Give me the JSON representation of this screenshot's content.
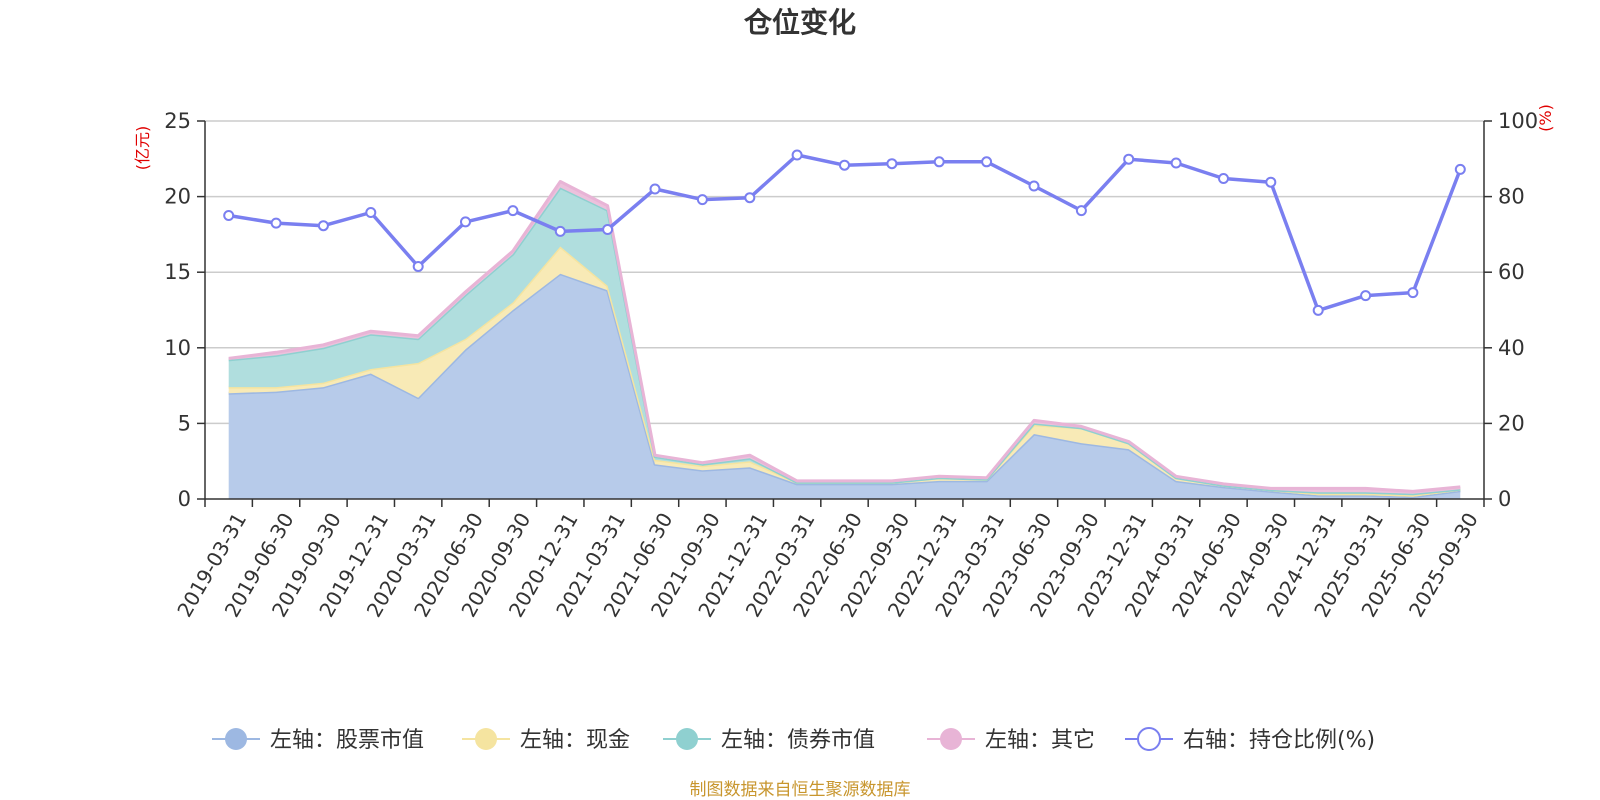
{
  "chart_data": {
    "type": "area",
    "title": "仓位变化",
    "left_axis_unit": "(亿元)",
    "right_axis_unit": "(%)",
    "left_ylim": [
      0,
      25
    ],
    "left_ticks": [
      "0",
      "5",
      "10",
      "15",
      "20",
      "25"
    ],
    "right_ylim": [
      0,
      100
    ],
    "right_ticks": [
      "0",
      "20",
      "40",
      "60",
      "80",
      "100"
    ],
    "categories": [
      "2019-03-31",
      "2019-06-30",
      "2019-09-30",
      "2019-12-31",
      "2020-03-31",
      "2020-06-30",
      "2020-09-30",
      "2020-12-31",
      "2021-03-31",
      "2021-06-30",
      "2021-09-30",
      "2021-12-31",
      "2022-03-31",
      "2022-06-30",
      "2022-09-30",
      "2022-12-31",
      "2023-03-31",
      "2023-06-30",
      "2023-09-30",
      "2023-12-31",
      "2024-03-31",
      "2024-06-30",
      "2024-09-30",
      "2024-12-31",
      "2025-03-31",
      "2025-06-30",
      "2025-09-30"
    ],
    "series": [
      {
        "name": "左轴：股票市值",
        "axis": "left",
        "kind": "stacked-area",
        "color": "#9db8e2",
        "fill": "#b7cbea",
        "values": [
          7.0,
          7.1,
          7.4,
          8.3,
          6.7,
          9.9,
          12.5,
          14.9,
          13.8,
          2.3,
          1.9,
          2.1,
          1.0,
          1.0,
          1.0,
          1.2,
          1.2,
          4.3,
          3.7,
          3.3,
          1.2,
          0.8,
          0.5,
          0.25,
          0.25,
          0.15,
          0.55
        ]
      },
      {
        "name": "左轴：现金",
        "axis": "left",
        "kind": "stacked-area",
        "color": "#f5e4a0",
        "fill": "#f8eab6",
        "values": [
          0.4,
          0.3,
          0.3,
          0.3,
          2.3,
          0.7,
          0.5,
          1.8,
          0.3,
          0.3,
          0.3,
          0.4,
          0.1,
          0.1,
          0.1,
          0.2,
          0.1,
          0.6,
          1.0,
          0.4,
          0.2,
          0.1,
          0.1,
          0.1,
          0.1,
          0.1,
          0.1
        ]
      },
      {
        "name": "左轴：债券市值",
        "axis": "left",
        "kind": "stacked-area",
        "color": "#8fd0d0",
        "fill": "#b0dede",
        "values": [
          1.8,
          2.1,
          2.3,
          2.3,
          1.6,
          2.9,
          3.2,
          3.9,
          5.0,
          0.2,
          0.1,
          0.2,
          0.0,
          0.0,
          0.0,
          0.0,
          0.0,
          0.1,
          0.0,
          0.0,
          0.0,
          0.0,
          0.0,
          0.1,
          0.1,
          0.1,
          0.0
        ]
      },
      {
        "name": "左轴：其它",
        "axis": "left",
        "kind": "stacked-area",
        "color": "#e8b4d6",
        "fill": "#ecc1dc",
        "values": [
          0.1,
          0.2,
          0.2,
          0.2,
          0.2,
          0.2,
          0.2,
          0.4,
          0.3,
          0.1,
          0.1,
          0.2,
          0.1,
          0.1,
          0.1,
          0.1,
          0.1,
          0.2,
          0.1,
          0.1,
          0.1,
          0.1,
          0.1,
          0.25,
          0.25,
          0.15,
          0.15
        ]
      },
      {
        "name": "右轴：持仓比例(%)",
        "axis": "right",
        "kind": "line",
        "color": "#7a7ff0",
        "values": [
          75.0,
          73.0,
          72.3,
          75.8,
          61.5,
          73.3,
          76.3,
          70.8,
          71.3,
          82.0,
          79.2,
          79.7,
          91.0,
          88.3,
          88.7,
          89.2,
          89.2,
          82.8,
          76.3,
          89.9,
          88.9,
          84.8,
          83.8,
          49.9,
          53.8,
          54.6,
          87.2
        ]
      }
    ],
    "source_note": "制图数据来自恒生聚源数据库"
  }
}
